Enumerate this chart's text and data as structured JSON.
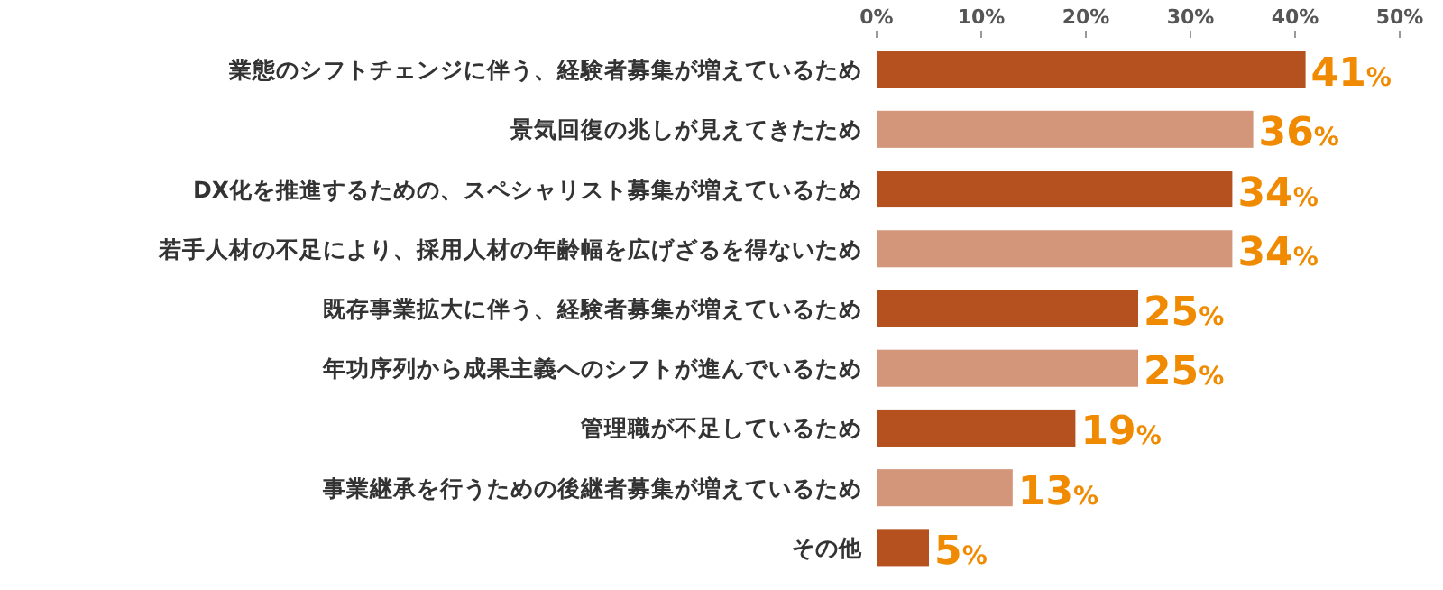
{
  "chart_data": {
    "type": "bar",
    "orientation": "horizontal",
    "categories": [
      "業態のシフトチェンジに伴う、経験者募集が増えているため",
      "景気回復の兆しが見えてきたため",
      "DX化を推進するための、スペシャリスト募集が増えているため",
      "若手人材の不足により、採用人材の年齢幅を広げざるを得ないため",
      "既存事業拡大に伴う、経験者募集が増えているため",
      "年功序列から成果主義へのシフトが進んでいるため",
      "管理職が不足しているため",
      "事業継承を行うための後継者募集が増えているため",
      "その他"
    ],
    "values": [
      41,
      36,
      34,
      34,
      25,
      25,
      19,
      13,
      5
    ],
    "colors": [
      "#b5501f",
      "#d4967a",
      "#b5501f",
      "#d4967a",
      "#b5501f",
      "#d4967a",
      "#b5501f",
      "#d4967a",
      "#b5501f"
    ],
    "value_labels": [
      "41%",
      "36%",
      "34%",
      "34%",
      "25%",
      "25%",
      "19%",
      "13%",
      "5%"
    ],
    "xlim": [
      0,
      50
    ],
    "xticks": [
      {
        "value": 0,
        "label": "0%"
      },
      {
        "value": 10,
        "label": "10%"
      },
      {
        "value": 20,
        "label": "20%"
      },
      {
        "value": 30,
        "label": "30%"
      },
      {
        "value": 40,
        "label": "40%"
      },
      {
        "value": 50,
        "label": "50%"
      }
    ]
  }
}
